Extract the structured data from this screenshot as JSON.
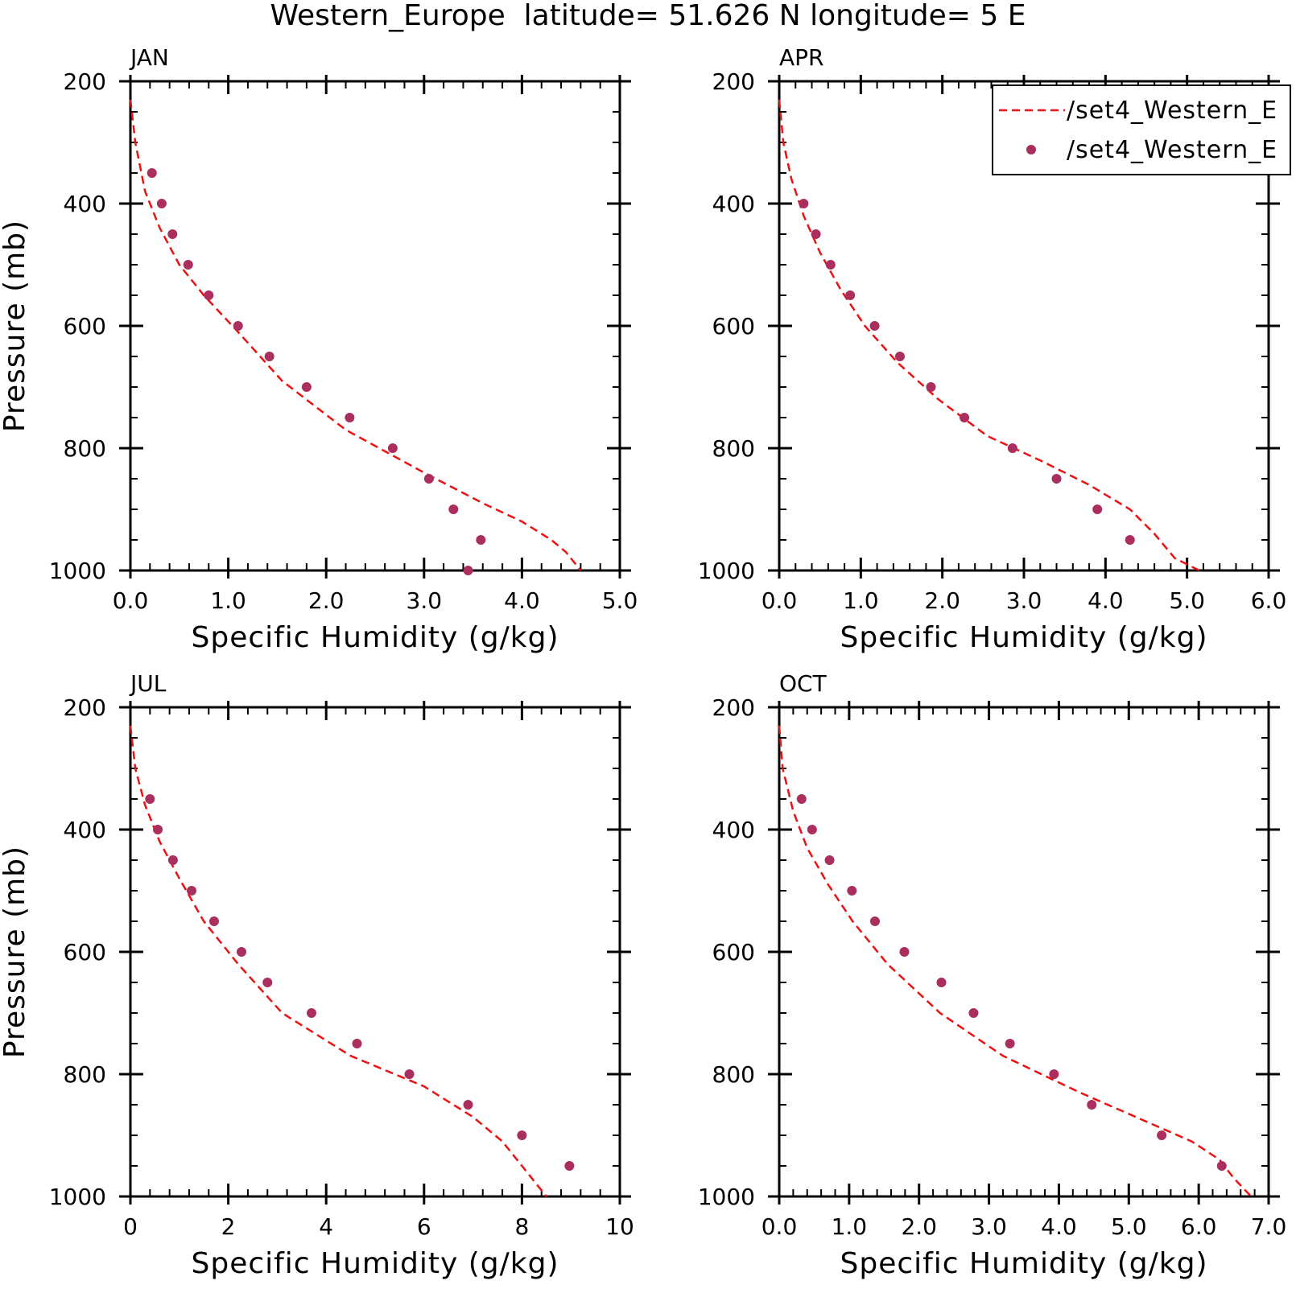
{
  "title": "Western_Europe  latitude= 51.626 N longitude= 5 E",
  "colors": {
    "model_line": "#ee1111",
    "obs_marker": "#aa2e5e",
    "axis": "#000000"
  },
  "legend": {
    "position": "top-right",
    "entries": [
      {
        "label": "/set4_Western_E",
        "style": "dashed-line"
      },
      {
        "label": "/set4_Western_E",
        "style": "dot-marker"
      }
    ]
  },
  "chart_data": [
    {
      "type": "line",
      "panel_label": "JAN",
      "xlabel": "Specific Humidity (g/kg)",
      "ylabel": "Pressure (mb)",
      "xlim": [
        0,
        5
      ],
      "ylim": [
        200,
        1000
      ],
      "y_inverted": true,
      "xticks": [
        "0.0",
        "1.0",
        "2.0",
        "3.0",
        "4.0",
        "5.0"
      ],
      "xtick_values": [
        0,
        1,
        2,
        3,
        4,
        5
      ],
      "yticks": [
        "200",
        "400",
        "600",
        "800",
        "1000"
      ],
      "ytick_values": [
        200,
        400,
        600,
        800,
        1000
      ],
      "series": [
        {
          "name": "/set4_Western_E",
          "style": "dashed-line",
          "x": [
            0.0,
            0.05,
            0.15,
            0.3,
            0.5,
            0.75,
            1.1,
            1.55,
            2.2,
            3.0,
            3.6,
            4.0,
            4.3,
            4.45,
            4.6
          ],
          "y": [
            230,
            300,
            380,
            440,
            500,
            550,
            610,
            690,
            770,
            840,
            890,
            920,
            950,
            970,
            1000
          ]
        },
        {
          "name": "/set4_Western_E",
          "style": "dot-marker",
          "x": [
            0.22,
            0.32,
            0.43,
            0.59,
            0.8,
            1.1,
            1.42,
            1.8,
            2.24,
            2.68,
            3.05,
            3.3,
            3.58,
            3.45
          ],
          "y": [
            350,
            400,
            450,
            500,
            550,
            600,
            650,
            700,
            750,
            800,
            850,
            900,
            950,
            1000
          ]
        }
      ]
    },
    {
      "type": "line",
      "panel_label": "APR",
      "xlabel": "Specific Humidity (g/kg)",
      "ylabel": "",
      "xlim": [
        0,
        6
      ],
      "ylim": [
        200,
        1000
      ],
      "y_inverted": true,
      "xticks": [
        "0.0",
        "1.0",
        "2.0",
        "3.0",
        "4.0",
        "5.0",
        "6.0"
      ],
      "xtick_values": [
        0,
        1,
        2,
        3,
        4,
        5,
        6
      ],
      "yticks": [
        "200",
        "400",
        "600",
        "800",
        "1000"
      ],
      "ytick_values": [
        200,
        400,
        600,
        800,
        1000
      ],
      "series": [
        {
          "name": "/set4_Western_E",
          "style": "dashed-line",
          "x": [
            0.0,
            0.05,
            0.15,
            0.3,
            0.5,
            0.75,
            1.05,
            1.45,
            1.95,
            2.55,
            3.2,
            3.8,
            4.3,
            4.6,
            4.85,
            5.15
          ],
          "y": [
            230,
            300,
            360,
            420,
            480,
            540,
            600,
            660,
            720,
            780,
            820,
            860,
            900,
            940,
            980,
            1000
          ]
        },
        {
          "name": "/set4_Western_E",
          "style": "dot-marker",
          "x": [
            0.3,
            0.45,
            0.63,
            0.87,
            1.17,
            1.48,
            1.86,
            2.27,
            2.86,
            3.4,
            3.9,
            4.3
          ],
          "y": [
            400,
            450,
            500,
            550,
            600,
            650,
            700,
            750,
            800,
            850,
            900,
            950
          ]
        }
      ]
    },
    {
      "type": "line",
      "panel_label": "JUL",
      "xlabel": "Specific Humidity (g/kg)",
      "ylabel": "Pressure (mb)",
      "xlim": [
        0,
        10
      ],
      "ylim": [
        200,
        1000
      ],
      "y_inverted": true,
      "xticks": [
        "0",
        "2",
        "4",
        "6",
        "8",
        "10"
      ],
      "xtick_values": [
        0,
        2,
        4,
        6,
        8,
        10
      ],
      "yticks": [
        "200",
        "400",
        "600",
        "800",
        "1000"
      ],
      "ytick_values": [
        200,
        400,
        600,
        800,
        1000
      ],
      "series": [
        {
          "name": "/set4_Western_E",
          "style": "dashed-line",
          "x": [
            0.0,
            0.1,
            0.3,
            0.6,
            1.0,
            1.5,
            2.2,
            3.1,
            4.5,
            6.0,
            7.0,
            7.6,
            8.0,
            8.5
          ],
          "y": [
            230,
            300,
            360,
            420,
            480,
            550,
            620,
            700,
            770,
            820,
            870,
            910,
            950,
            1000
          ]
        },
        {
          "name": "/set4_Western_E",
          "style": "dot-marker",
          "x": [
            0.4,
            0.56,
            0.87,
            1.25,
            1.71,
            2.27,
            2.8,
            3.7,
            4.63,
            5.7,
            6.9,
            8.0,
            8.97
          ],
          "y": [
            350,
            400,
            450,
            500,
            550,
            600,
            650,
            700,
            750,
            800,
            850,
            900,
            950
          ]
        }
      ]
    },
    {
      "type": "line",
      "panel_label": "OCT",
      "xlabel": "Specific Humidity (g/kg)",
      "ylabel": "",
      "xlim": [
        0,
        7
      ],
      "ylim": [
        200,
        1000
      ],
      "y_inverted": true,
      "xticks": [
        "0.0",
        "1.0",
        "2.0",
        "3.0",
        "4.0",
        "5.0",
        "6.0",
        "7.0"
      ],
      "xtick_values": [
        0,
        1,
        2,
        3,
        4,
        5,
        6,
        7
      ],
      "yticks": [
        "200",
        "400",
        "600",
        "800",
        "1000"
      ],
      "ytick_values": [
        200,
        400,
        600,
        800,
        1000
      ],
      "series": [
        {
          "name": "/set4_Western_E",
          "style": "dashed-line",
          "x": [
            0.0,
            0.05,
            0.2,
            0.4,
            0.7,
            1.05,
            1.55,
            2.3,
            3.2,
            4.3,
            5.3,
            5.9,
            6.3,
            6.5,
            6.75
          ],
          "y": [
            230,
            300,
            370,
            430,
            490,
            550,
            620,
            700,
            770,
            830,
            880,
            910,
            940,
            970,
            1000
          ]
        },
        {
          "name": "/set4_Western_E",
          "style": "dot-marker",
          "x": [
            0.32,
            0.47,
            0.72,
            1.04,
            1.37,
            1.79,
            2.32,
            2.78,
            3.3,
            3.93,
            4.47,
            5.47,
            6.33
          ],
          "y": [
            350,
            400,
            450,
            500,
            550,
            600,
            650,
            700,
            750,
            800,
            850,
            900,
            950
          ]
        }
      ]
    }
  ]
}
